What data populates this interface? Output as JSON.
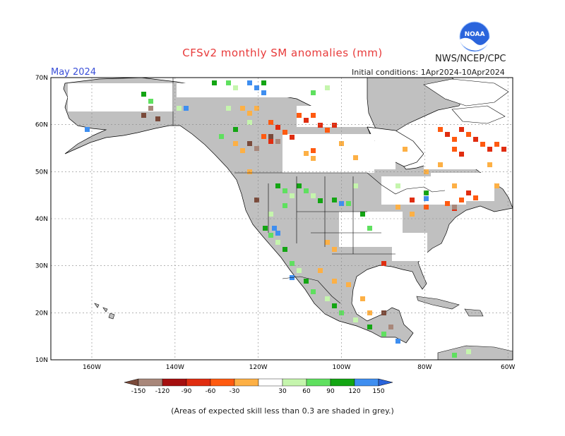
{
  "title": "CFSv2 monthly SM anomalies (mm)",
  "organization": "NWS/NCEP/CPC",
  "logo_text": "NOAA",
  "forecast_month": "May 2024",
  "initial_conditions": "Initial conditions: 1Apr2024-10Apr2024",
  "lat_labels": [
    "70N",
    "60N",
    "50N",
    "40N",
    "30N",
    "20N",
    "10N"
  ],
  "lon_labels": [
    "160W",
    "140W",
    "120W",
    "100W",
    "80W",
    "60W"
  ],
  "colorbar": {
    "labels": [
      "-150",
      "-120",
      "-90",
      "-60",
      "-30",
      "30",
      "60",
      "90",
      "120",
      "150"
    ],
    "colors": [
      "#7a4a3a",
      "#a8877a",
      "#a50f0f",
      "#e02d10",
      "#ff5a10",
      "#fdb045",
      "#ffffff",
      "#c5f5ad",
      "#5fe05f",
      "#13a513",
      "#3e8ef0",
      "#2a64dc"
    ]
  },
  "caption": "(Areas of expected skill less than 0.3 are shaded in grey.)",
  "colors": {
    "land_low_skill": "#c0c0c0",
    "ocean": "#ffffff",
    "title": "#e83a3a",
    "month": "#3a4fd8"
  }
}
